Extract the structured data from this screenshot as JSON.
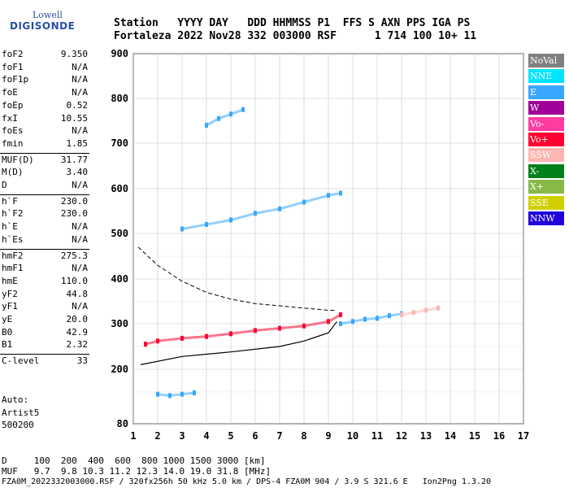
{
  "logo": {
    "line1": "Lowell",
    "line2": "DIGISONDE"
  },
  "header": {
    "line1": "Station   YYYY DAY   DDD HHMMSS P1  FFS S AXN PPS IGA PS",
    "line2": "Fortaleza 2022 Nov28 332 003000 RSF      1 714 100 10+ 11"
  },
  "params": [
    {
      "name": "foF2",
      "value": "9.350"
    },
    {
      "name": "foF1",
      "value": "N/A"
    },
    {
      "name": "foF1p",
      "value": "N/A"
    },
    {
      "name": "foE",
      "value": "N/A"
    },
    {
      "name": "foEp",
      "value": "0.52"
    },
    {
      "name": "fxI",
      "value": "10.55"
    },
    {
      "name": "foEs",
      "value": "N/A"
    },
    {
      "name": "fmin",
      "value": "1.85"
    },
    {
      "name": "MUF(D)",
      "value": "31.77"
    },
    {
      "name": "M(D)",
      "value": "3.40"
    },
    {
      "name": "D",
      "value": "N/A"
    },
    {
      "name": "h`F",
      "value": "230.0"
    },
    {
      "name": "h`F2",
      "value": "230.0"
    },
    {
      "name": "h`E",
      "value": "N/A"
    },
    {
      "name": "h`Es",
      "value": "N/A"
    },
    {
      "name": "hmF2",
      "value": "275.3"
    },
    {
      "name": "hmF1",
      "value": "N/A"
    },
    {
      "name": "hmE",
      "value": "110.0"
    },
    {
      "name": "yF2",
      "value": "44.8"
    },
    {
      "name": "yF1",
      "value": "N/A"
    },
    {
      "name": "yE",
      "value": "20.0"
    },
    {
      "name": "B0",
      "value": "42.9"
    },
    {
      "name": "B1",
      "value": "2.32"
    },
    {
      "name": "C-level",
      "value": "33"
    }
  ],
  "auto": {
    "line1": "Auto:",
    "line2": "Artist5",
    "line3": "500200"
  },
  "legend": [
    {
      "label": "NoVal",
      "color": "#808080"
    },
    {
      "label": "NNE",
      "color": "#00e5ff"
    },
    {
      "label": "E",
      "color": "#39a7ff"
    },
    {
      "label": "W",
      "color": "#a0009a"
    },
    {
      "label": "Vo-",
      "color": "#ff3aa0"
    },
    {
      "label": "Vo+",
      "color": "#ff0030"
    },
    {
      "label": "SSW",
      "color": "#ffb6b0"
    },
    {
      "label": "X-",
      "color": "#00801a"
    },
    {
      "label": "X+",
      "color": "#88b848"
    },
    {
      "label": "SSE",
      "color": "#d0d000"
    },
    {
      "label": "NNW",
      "color": "#2000d8"
    }
  ],
  "chart_data": {
    "type": "scatter",
    "x_ticks": [
      1,
      2,
      3,
      4,
      5,
      6,
      7,
      8,
      9,
      10,
      11,
      12,
      13,
      14,
      15,
      16,
      17
    ],
    "y_ticks": [
      80,
      200,
      300,
      400,
      500,
      600,
      700,
      800,
      900
    ],
    "xlim": [
      1,
      17
    ],
    "ylim": [
      80,
      900
    ],
    "grid": true,
    "legend_position": "right",
    "traces": [
      {
        "region": "F-layer o-trace",
        "color": "#ff0030",
        "points": [
          [
            1.5,
            255
          ],
          [
            2,
            262
          ],
          [
            3,
            268
          ],
          [
            4,
            272
          ],
          [
            5,
            278
          ],
          [
            6,
            285
          ],
          [
            7,
            290
          ],
          [
            8,
            295
          ],
          [
            9,
            305
          ],
          [
            9.5,
            320
          ]
        ]
      },
      {
        "region": "F-layer x-trace",
        "color": "#39a7ff",
        "points": [
          [
            9.5,
            300
          ],
          [
            10,
            305
          ],
          [
            10.5,
            310
          ],
          [
            11,
            312
          ],
          [
            11.5,
            318
          ],
          [
            12,
            322
          ]
        ]
      },
      {
        "region": "spread-F",
        "color": "#ffb6b0",
        "points": [
          [
            12,
            320
          ],
          [
            12.5,
            325
          ],
          [
            13,
            330
          ],
          [
            13.5,
            335
          ]
        ]
      },
      {
        "region": "upper echoes",
        "color": "#39a7ff",
        "points": [
          [
            3,
            510
          ],
          [
            4,
            520
          ],
          [
            5,
            530
          ],
          [
            6,
            545
          ],
          [
            7,
            555
          ],
          [
            8,
            570
          ],
          [
            9,
            585
          ],
          [
            9.5,
            590
          ]
        ]
      },
      {
        "region": "high echoes",
        "color": "#39a7ff",
        "points": [
          [
            4,
            740
          ],
          [
            4.5,
            755
          ],
          [
            5,
            765
          ],
          [
            5.5,
            775
          ]
        ]
      },
      {
        "region": "Es-like low",
        "color": "#39a7ff",
        "points": [
          [
            2,
            145
          ],
          [
            2.5,
            142
          ],
          [
            3,
            145
          ],
          [
            3.5,
            148
          ]
        ]
      }
    ],
    "profile_curve": {
      "color": "#000000",
      "points": [
        [
          1.3,
          210
        ],
        [
          3,
          228
        ],
        [
          5,
          238
        ],
        [
          7,
          250
        ],
        [
          8,
          262
        ],
        [
          9,
          280
        ],
        [
          9.35,
          305
        ]
      ]
    },
    "dashed_curve": {
      "color": "#000000",
      "points": [
        [
          1.2,
          470
        ],
        [
          2,
          430
        ],
        [
          3,
          395
        ],
        [
          4,
          370
        ],
        [
          5,
          355
        ],
        [
          6,
          345
        ],
        [
          7,
          340
        ],
        [
          8,
          335
        ],
        [
          9,
          330
        ],
        [
          9.35,
          330
        ]
      ]
    }
  },
  "footer": {
    "line1": "D     100  200  400  600  800 1000 1500 3000 [km]",
    "line2": "MUF   9.7  9.8 10.3 11.2 12.3 14.0 19.0 31.8 [MHz]",
    "line3": "FZA0M_2022332003000.RSF / 320fx256h 50 kHz 5.0 km / DPS-4 FZA0M 904 / 3.9 S 321.6 E   Ion2Png 1.3.20"
  }
}
